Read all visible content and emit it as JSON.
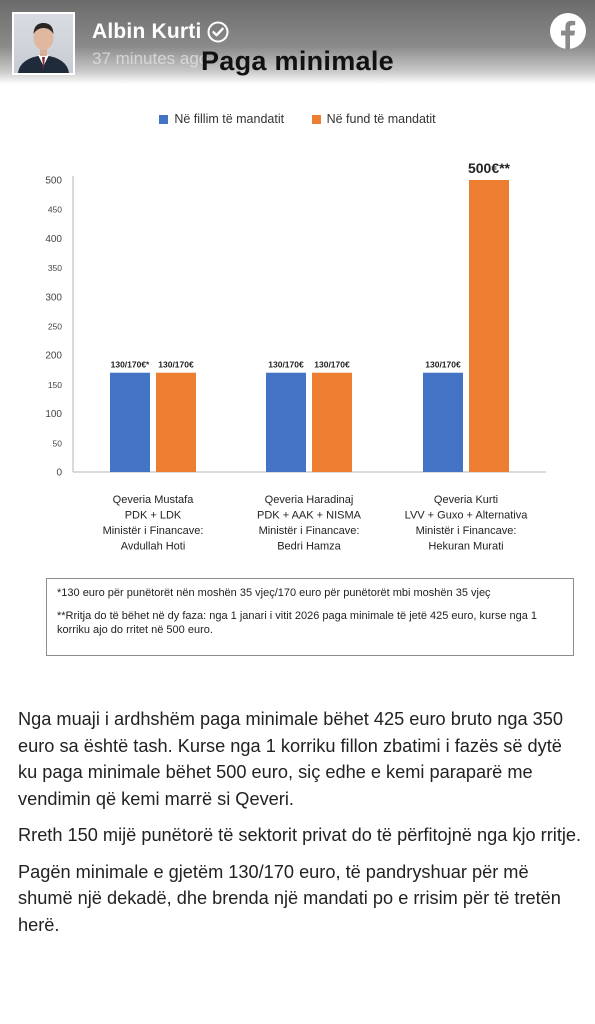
{
  "post": {
    "author": "Albin Kurti",
    "timestamp": "37 minutes ago",
    "paragraphs": [
      "Nga muaji i ardhshëm paga minimale bëhet 425 euro bruto nga 350 euro sa është tash. Kurse nga 1 korriku fillon zbatimi i fazës së dytë ku paga minimale bëhet 500 euro, siç edhe e kemi paraparë me vendimin që kemi marrë si Qeveri.",
      "Rreth 150 mijë punëtorë të sektorit privat do të përfitojnë nga kjo rritje.",
      "Pagën minimale e gjetëm 130/170 euro, të pandryshuar për më shumë një dekadë, dhe brenda një mandati po e rrisim për të tretën herë."
    ]
  },
  "icons": {
    "verified": "verified-badge-icon",
    "platform": "facebook-icon"
  },
  "chart_data": {
    "type": "bar",
    "title": "Paga minimale",
    "legend_position": "top-center",
    "grid": false,
    "ylim": [
      0,
      500
    ],
    "yticks": [
      "0",
      "50",
      "100",
      "150",
      "200",
      "250",
      "300",
      "350",
      "400",
      "450",
      "500"
    ],
    "categories": [
      [
        "Qeveria Mustafa",
        "PDK + LDK",
        "Ministër i Financave:",
        "Avdullah Hoti"
      ],
      [
        "Qeveria Haradinaj",
        "PDK + AAK + NISMA",
        "Ministër i Financave:",
        "Bedri Hamza"
      ],
      [
        "Qeveria Kurti",
        "LVV + Guxo + Alternativa",
        "Ministër i Financave:",
        "Hekuran Murati"
      ]
    ],
    "series": [
      {
        "name": "Në fillim të mandatit",
        "color": "#4472c4",
        "values": [
          170,
          170,
          170
        ],
        "labels": [
          "130/170€*",
          "130/170€",
          "130/170€"
        ]
      },
      {
        "name": "Në fund të mandatit",
        "color": "#ed7d31",
        "values": [
          170,
          170,
          500
        ],
        "labels": [
          "130/170€",
          "130/170€",
          "500€**"
        ]
      }
    ],
    "notes": [
      "*130 euro për punëtorët nën moshën 35 vjeç/170 euro për punëtorët mbi moshën 35 vjeç",
      "**Rritja do të bëhet në dy faza: nga 1 janari i vitit 2026 paga minimale të jetë 425 euro, kurse nga 1 korriku ajo do rritet në 500 euro."
    ]
  }
}
